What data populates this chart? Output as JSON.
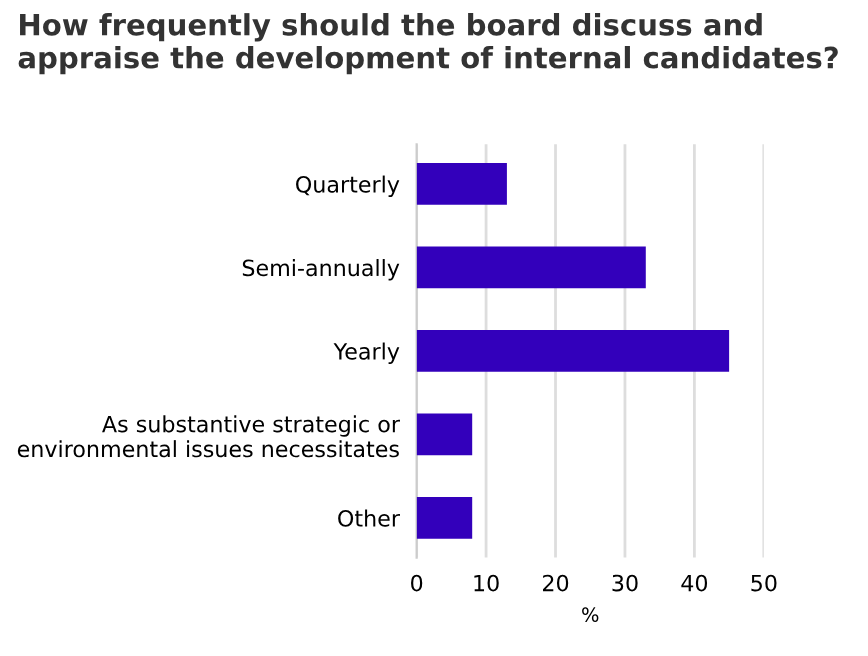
{
  "chart_data": {
    "type": "bar",
    "orientation": "horizontal",
    "title": "How frequently should the board discuss and appraise the development of internal candidates?",
    "xlabel": "%",
    "categories": [
      "Quarterly",
      "Semi-annually",
      "Yearly",
      "As substantive strategic or\nenvironmental issues necessitates",
      "Other"
    ],
    "values": [
      13,
      33,
      45,
      8,
      8
    ],
    "color": "#3300bb",
    "xlim": [
      0,
      50
    ],
    "xticks": [
      0,
      10,
      20,
      30,
      40,
      50
    ],
    "grid": "x"
  }
}
